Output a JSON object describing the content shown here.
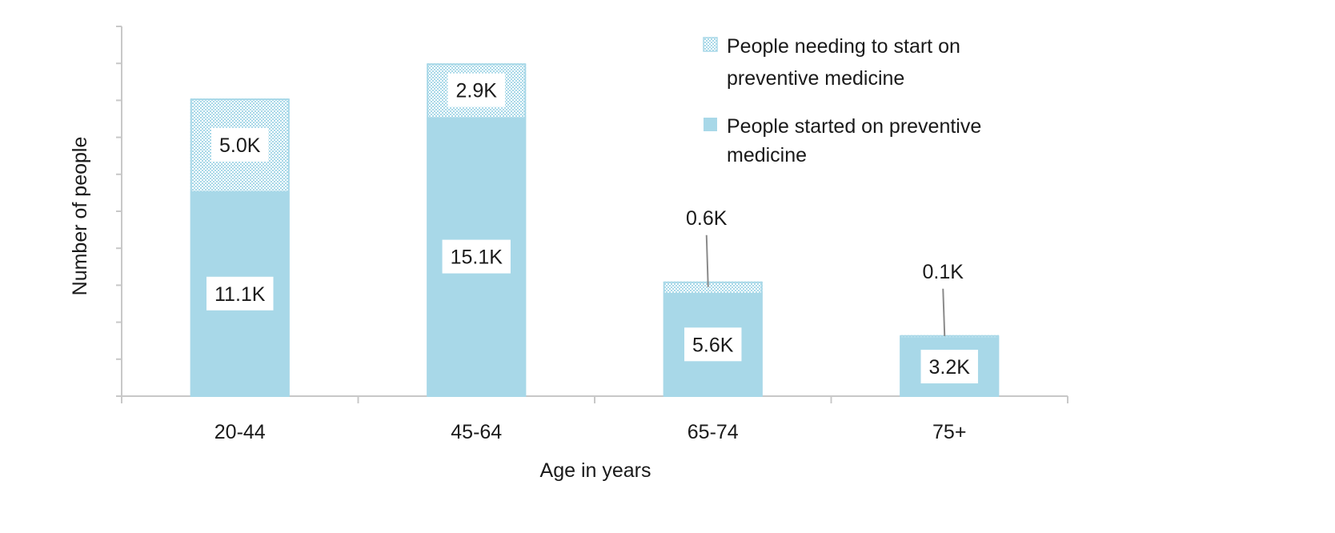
{
  "chart_data": {
    "type": "bar",
    "stacked": true,
    "categories": [
      "20-44",
      "45-64",
      "65-74",
      "75+"
    ],
    "series": [
      {
        "name": "People started on preventive medicine",
        "values": [
          11.1,
          15.1,
          5.6,
          3.2
        ],
        "labels": [
          "11.1K",
          "15.1K",
          "5.6K",
          "3.2K"
        ],
        "color": "#a8d8e8",
        "pattern": "solid"
      },
      {
        "name": "People needing to start on preventive medicine",
        "values": [
          5.0,
          2.9,
          0.6,
          0.1
        ],
        "labels": [
          "5.0K",
          "2.9K",
          "0.6K",
          "0.1K"
        ],
        "color": "#a8d8e8",
        "pattern": "dotted"
      }
    ],
    "xlabel": "Age in years",
    "ylabel": "Number of people",
    "ylim": [
      0,
      20
    ],
    "ytick_labels_shown": false,
    "grid": false,
    "legend": {
      "placement": "top-right",
      "lines": [
        [
          "People needing to start on",
          "preventive medicine"
        ],
        [
          "People started on preventive",
          "medicine"
        ]
      ]
    },
    "colors": {
      "bar": "#a8d8e8",
      "axis": "#c8c8c8",
      "leader": "#8a8a8a"
    }
  }
}
